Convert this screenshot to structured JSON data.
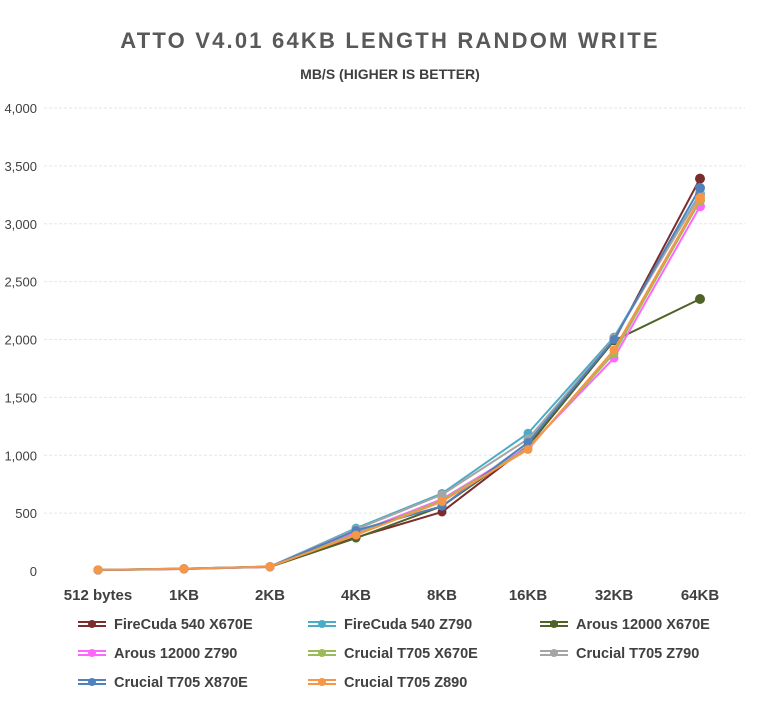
{
  "chart_data": {
    "type": "line",
    "title": "ATTO V4.01 64KB LENGTH RANDOM WRITE",
    "subtitle": "MB/S (HIGHER IS BETTER)",
    "xlabel": "",
    "ylabel": "",
    "categories": [
      "512 bytes",
      "1KB",
      "2KB",
      "4KB",
      "8KB",
      "16KB",
      "32KB",
      "64KB"
    ],
    "ylim": [
      0,
      4000
    ],
    "yticks": [
      0,
      500,
      1000,
      1500,
      2000,
      2500,
      3000,
      3500,
      4000
    ],
    "ytick_labels": [
      "0",
      "500",
      "1,000",
      "1,500",
      "2,000",
      "2,500",
      "3,000",
      "3,500",
      "4,000"
    ],
    "grid": true,
    "legend_position": "bottom",
    "series": [
      {
        "name": "FireCuda 540 X670E",
        "color": "#7B2C2C",
        "values": [
          9,
          19,
          37,
          290,
          510,
          1080,
          1990,
          3390
        ]
      },
      {
        "name": "FireCuda 540 Z790",
        "color": "#4BACC6",
        "values": [
          10,
          20,
          38,
          370,
          670,
          1190,
          2020,
          3260
        ]
      },
      {
        "name": "Arous 12000 X670E",
        "color": "#4F6228",
        "values": [
          8,
          17,
          35,
          285,
          560,
          1080,
          1990,
          2350
        ]
      },
      {
        "name": "Arous 12000 Z790",
        "color": "#FF66FF",
        "values": [
          9,
          18,
          36,
          330,
          620,
          1070,
          1840,
          3150
        ]
      },
      {
        "name": "Crucial T705 X670E",
        "color": "#9BBB59",
        "values": [
          9,
          19,
          37,
          320,
          610,
          1060,
          1880,
          3200
        ]
      },
      {
        "name": "Crucial T705 Z790",
        "color": "#A5A5A5",
        "values": [
          10,
          21,
          39,
          360,
          660,
          1140,
          2010,
          3250
        ]
      },
      {
        "name": "Crucial T705 X870E",
        "color": "#4F81BD",
        "values": [
          9,
          20,
          38,
          350,
          560,
          1110,
          2000,
          3310
        ]
      },
      {
        "name": "Crucial T705 Z890",
        "color": "#F79646",
        "values": [
          10,
          20,
          38,
          310,
          600,
          1050,
          1910,
          3220
        ]
      }
    ]
  }
}
